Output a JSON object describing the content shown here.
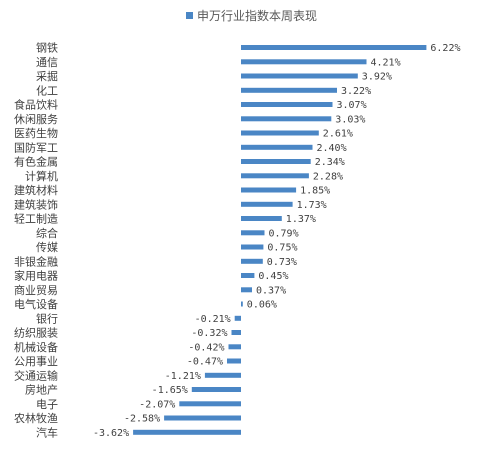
{
  "chart_data": {
    "type": "bar",
    "orientation": "horizontal",
    "legend": {
      "position": "top",
      "entries": [
        "申万行业指数本周表现"
      ]
    },
    "series": [
      {
        "name": "申万行业指数本周表现",
        "color": "#4A86C5",
        "values": [
          6.22,
          4.21,
          3.92,
          3.22,
          3.07,
          3.03,
          2.61,
          2.4,
          2.34,
          2.28,
          1.85,
          1.73,
          1.37,
          0.79,
          0.75,
          0.73,
          0.45,
          0.37,
          0.06,
          -0.21,
          -0.32,
          -0.42,
          -0.47,
          -1.21,
          -1.65,
          -2.07,
          -2.58,
          -3.62
        ],
        "data_labels": [
          "6.22%",
          "4.21%",
          "3.92%",
          "3.22%",
          "3.07%",
          "3.03%",
          "2.61%",
          "2.40%",
          "2.34%",
          "2.28%",
          "1.85%",
          "1.73%",
          "1.37%",
          "0.79%",
          "0.75%",
          "0.73%",
          "0.45%",
          "0.37%",
          "0.06%",
          "-0.21%",
          "-0.32%",
          "-0.42%",
          "-0.47%",
          "-1.21%",
          "-1.65%",
          "-2.07%",
          "-2.58%",
          "-3.62%"
        ]
      }
    ],
    "categories": [
      "钢铁",
      "通信",
      "采掘",
      "化工",
      "食品饮料",
      "休闲服务",
      "医药生物",
      "国防军工",
      "有色金属",
      "计算机",
      "建筑材料",
      "建筑装饰",
      "轻工制造",
      "综合",
      "传媒",
      "非银金融",
      "家用电器",
      "商业贸易",
      "电气设备",
      "银行",
      "纺织服装",
      "机械设备",
      "公用事业",
      "交通运输",
      "房地产",
      "电子",
      "农林牧渔",
      "汽车"
    ],
    "grid": false,
    "unit": "%"
  }
}
